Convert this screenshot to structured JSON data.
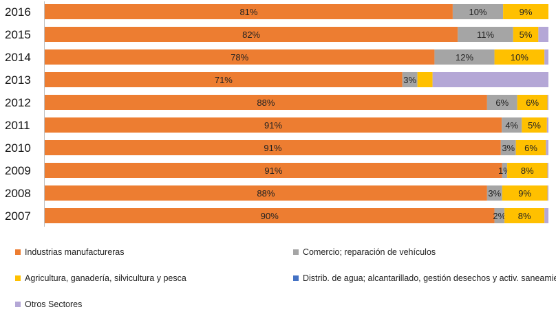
{
  "colors": {
    "manufacturing": "#ED7D31",
    "commerce": "#A5A5A5",
    "agriculture": "#FFC000",
    "water": "#4472C4",
    "other": "#B4A7D6"
  },
  "chart_data": {
    "type": "bar",
    "orientation": "horizontal",
    "stacked": true,
    "normalized": true,
    "categories": [
      "2016",
      "2015",
      "2014",
      "2013",
      "2012",
      "2011",
      "2010",
      "2009",
      "2008",
      "2007"
    ],
    "xlim": [
      0,
      100
    ],
    "grid": false,
    "legend_position": "bottom",
    "series": [
      {
        "name": "Industrias manufactureras",
        "key": "manufacturing",
        "values": [
          81,
          82,
          78,
          71,
          88,
          91,
          91,
          91,
          88,
          90
        ],
        "labels": [
          "81%",
          "82%",
          "78%",
          "71%",
          "88%",
          "91%",
          "91%",
          "91%",
          "88%",
          "90%"
        ]
      },
      {
        "name": "Comercio; reparación de vehículos",
        "key": "commerce",
        "values": [
          10,
          11,
          12,
          3,
          6,
          4,
          3,
          1,
          3,
          2
        ],
        "labels": [
          "10%",
          "11%",
          "12%",
          "3%",
          "6%",
          "4%",
          "3%",
          "1%",
          "3%",
          "2%"
        ]
      },
      {
        "name": "Agricultura, ganadería,  silvicultura y pesca",
        "key": "agriculture",
        "values": [
          9,
          5,
          10,
          3,
          6,
          5,
          6,
          8,
          9,
          8
        ],
        "labels": [
          "9%",
          "5%",
          "10%",
          "",
          "6%",
          "5%",
          "6%",
          "8%",
          "9%",
          "8%"
        ]
      },
      {
        "name": "Distrib. de agua; alcantarillado, gestión desechos y activ. saneamiento",
        "key": "water",
        "values": [
          0,
          0,
          0,
          0,
          0,
          0,
          0,
          0,
          0,
          0
        ],
        "labels": [
          "",
          "",
          "",
          "",
          "",
          "",
          "",
          "",
          "",
          ""
        ]
      },
      {
        "name": "Otros Sectores",
        "key": "other",
        "values": [
          0,
          2,
          0.8,
          23,
          0.2,
          0.3,
          0.5,
          0.2,
          0.2,
          0.8
        ],
        "labels": [
          "",
          "",
          "",
          "",
          "",
          "",
          "",
          "",
          "",
          ""
        ]
      }
    ]
  },
  "legend": [
    {
      "label": "Industrias manufactureras",
      "key": "manufacturing"
    },
    {
      "label": "Comercio; reparación de vehículos",
      "key": "commerce"
    },
    {
      "label": "Agricultura, ganadería,  silvicultura y pesca",
      "key": "agriculture"
    },
    {
      "label": "Distrib. de agua; alcantarillado, gestión desechos y activ. saneamiento",
      "key": "water"
    },
    {
      "label": "Otros Sectores",
      "key": "other"
    }
  ]
}
